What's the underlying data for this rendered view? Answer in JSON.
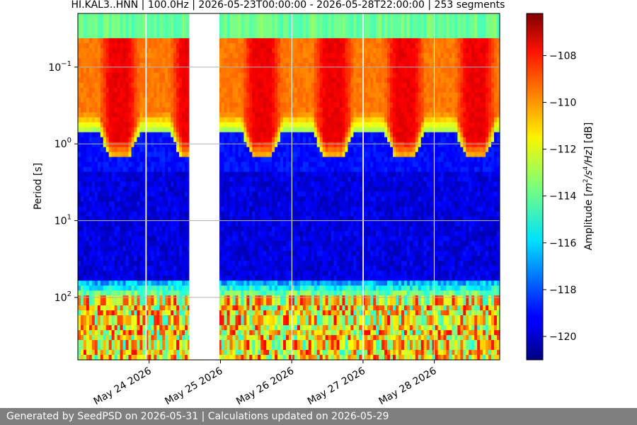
{
  "chart_data": {
    "type": "heatmap",
    "title": "HI.KAL3..HNN | 100.0Hz | 2026-05-23T00:00:00 - 2026-05-28T22:00:00 | 253 segments",
    "ylabel": "Period [s]",
    "y_scale": "log",
    "y_inverted": true,
    "ylim": [
      0.02,
      650
    ],
    "y_ticks": [
      {
        "value": 0.1,
        "base": "10",
        "exp": "−1"
      },
      {
        "value": 1,
        "base": "10",
        "exp": "0"
      },
      {
        "value": 10,
        "base": "10",
        "exp": "1"
      },
      {
        "value": 100,
        "base": "10",
        "exp": "2"
      }
    ],
    "xlim": [
      "2026-05-23T00:00:00",
      "2026-05-28T22:00:00"
    ],
    "x_ticks": [
      {
        "date": "2026-05-24",
        "label": "May 24 2026"
      },
      {
        "date": "2026-05-25",
        "label": "May 25 2026"
      },
      {
        "date": "2026-05-26",
        "label": "May 26 2026"
      },
      {
        "date": "2026-05-27",
        "label": "May 27 2026"
      },
      {
        "date": "2026-05-28",
        "label": "May 28 2026"
      }
    ],
    "data_gaps": [
      [
        "2026-05-23T22:45:00",
        "2026-05-23T23:10:00"
      ],
      [
        "2026-05-24T13:30:00",
        "2026-05-24T23:40:00"
      ],
      [
        "2026-05-25T23:55:00",
        "2026-05-26T00:10:00"
      ],
      [
        "2026-05-26T23:50:00",
        "2026-05-27T00:15:00"
      ],
      [
        "2026-05-27T23:50:00",
        "2026-05-28T00:05:00"
      ]
    ],
    "grid": true,
    "colorbar": {
      "label": "Amplitude [m²/s⁴/Hz] [dB]",
      "label_parts": {
        "a": "Amplitude [",
        "m": "m",
        "s2": "2",
        "slash1": "/",
        "s": "s",
        "s4": "4",
        "slash2": "/Hz",
        "b": "] [dB]"
      },
      "vmin": -121,
      "vmax": -106.2,
      "colormap": "jet",
      "ticks": [
        {
          "value": -108,
          "label": "−108"
        },
        {
          "value": -110,
          "label": "−110"
        },
        {
          "value": -112,
          "label": "−112"
        },
        {
          "value": -114,
          "label": "−114"
        },
        {
          "value": -116,
          "label": "−116"
        },
        {
          "value": -118,
          "label": "−118"
        },
        {
          "value": -120,
          "label": "−120"
        }
      ]
    },
    "diurnal_pattern": {
      "short_period_band_s": [
        0.05,
        0.7
      ],
      "daytime_peak_db": -107.5,
      "night_db": -109.5,
      "quiet_band_s": [
        2,
        60
      ],
      "quiet_db": -120.3,
      "long_period_band_s": [
        100,
        650
      ],
      "long_period_db": -113
    }
  },
  "footer": {
    "text": "Generated by SeedPSD on 2026-05-31 | Calculations updated on 2026-05-29"
  }
}
